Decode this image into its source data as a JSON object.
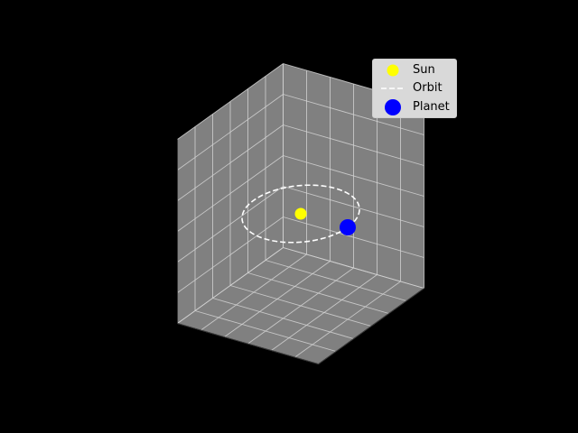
{
  "chart_data": {
    "type": "scatter",
    "projection": "3d",
    "title": "",
    "xlabel": "",
    "ylabel": "",
    "zlabel": "",
    "grid": true,
    "background": "#000000",
    "pane_color": "#808080",
    "legend_position": "upper-right",
    "series": [
      {
        "name": "Sun",
        "kind": "point",
        "color": "#ffff00",
        "marker": "circle",
        "points": [
          {
            "x": 0,
            "y": 0,
            "z": 0
          }
        ]
      },
      {
        "name": "Orbit",
        "kind": "line",
        "color": "#ffffff",
        "linestyle": "dashed",
        "shape": "circle",
        "radius": 1,
        "center": {
          "x": 0,
          "y": 0,
          "z": 0
        }
      },
      {
        "name": "Planet",
        "kind": "point",
        "color": "#0000ff",
        "marker": "circle",
        "points": [
          {
            "x": 1,
            "y": 0,
            "z": 0
          }
        ]
      }
    ]
  },
  "legend": {
    "items": [
      {
        "label": "Sun",
        "color": "#ffff00"
      },
      {
        "label": "Orbit",
        "color": "#ffffff"
      },
      {
        "label": "Planet",
        "color": "#0000ff"
      }
    ]
  }
}
